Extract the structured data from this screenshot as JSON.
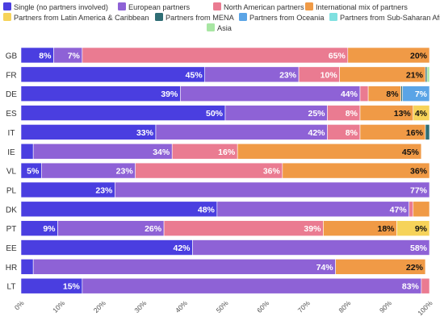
{
  "chart_data": {
    "type": "bar",
    "orientation": "horizontal",
    "stacked": true,
    "xlim": [
      0,
      100
    ],
    "x_ticks": [
      "0%",
      "10%",
      "20%",
      "30%",
      "40%",
      "50%",
      "60%",
      "70%",
      "80%",
      "90%",
      "100%"
    ],
    "categories": [
      "GB",
      "FR",
      "DE",
      "ES",
      "IT",
      "IE",
      "VL",
      "PL",
      "DK",
      "PT",
      "EE",
      "HR",
      "LT"
    ],
    "legend_position": "top",
    "series": [
      {
        "name": "Single (no partners involved)",
        "color": "#4a3ee0",
        "values": [
          8,
          45,
          39,
          50,
          33,
          3,
          5,
          23,
          48,
          9,
          42,
          3,
          15
        ]
      },
      {
        "name": "European partners",
        "color": "#8e62d6",
        "values": [
          7,
          23,
          44,
          25,
          42,
          34,
          23,
          77,
          47,
          26,
          58,
          74,
          83
        ]
      },
      {
        "name": "North American partners",
        "color": "#ea7b91",
        "values": [
          65,
          10,
          2,
          8,
          8,
          16,
          36,
          0,
          1,
          39,
          0,
          0,
          2
        ]
      },
      {
        "name": "International mix of partners",
        "color": "#f09a46",
        "values": [
          20,
          21,
          8,
          13,
          16,
          45,
          36,
          0,
          4,
          18,
          0,
          22,
          0
        ]
      },
      {
        "name": "Partners from Latin America & Caribbean",
        "color": "#f6d35a",
        "values": [
          0,
          0,
          0,
          4,
          0,
          0,
          0,
          0,
          0,
          9,
          0,
          0,
          0
        ]
      },
      {
        "name": "Partners from MENA",
        "color": "#2f6e75",
        "values": [
          0,
          0.4,
          0.4,
          0,
          1.2,
          0,
          0,
          0,
          0,
          0,
          0,
          0,
          0
        ]
      },
      {
        "name": "Partners from Oceania",
        "color": "#5aa4e6",
        "values": [
          0,
          0,
          7,
          0,
          0,
          0,
          0,
          0,
          0,
          0,
          0,
          0,
          0
        ]
      },
      {
        "name": "Partners from Sub-Saharan Africa",
        "color": "#7fe0e0",
        "values": [
          0,
          0,
          0,
          0,
          0,
          0,
          0,
          0,
          0,
          0,
          0,
          0,
          0
        ]
      },
      {
        "name": "Asia",
        "color": "#a8e6a3",
        "values": [
          0,
          1,
          0,
          0,
          0,
          0,
          0,
          0,
          0,
          0,
          0,
          0,
          0
        ]
      }
    ],
    "data_labels": [
      [
        "8%",
        "7%",
        "65%",
        "20%",
        "",
        "",
        "",
        "",
        ""
      ],
      [
        "45%",
        "23%",
        "10%",
        "21%",
        "",
        "",
        "",
        "",
        ""
      ],
      [
        "39%",
        "44%",
        "",
        "8%",
        "",
        "",
        "7%",
        "",
        ""
      ],
      [
        "50%",
        "25%",
        "8%",
        "13%",
        "4%",
        "",
        "",
        "",
        ""
      ],
      [
        "33%",
        "42%",
        "8%",
        "16%",
        "",
        "",
        "",
        "",
        ""
      ],
      [
        "",
        "34%",
        "16%",
        "45%",
        "",
        "",
        "",
        "",
        ""
      ],
      [
        "5%",
        "23%",
        "36%",
        "36%",
        "",
        "",
        "",
        "",
        ""
      ],
      [
        "23%",
        "77%",
        "",
        "",
        "",
        "",
        "",
        "",
        ""
      ],
      [
        "48%",
        "47%",
        "",
        "",
        "",
        "",
        "",
        "",
        ""
      ],
      [
        "9%",
        "26%",
        "39%",
        "18%",
        "9%",
        "",
        "",
        "",
        ""
      ],
      [
        "42%",
        "58%",
        "",
        "",
        "",
        "",
        "",
        "",
        ""
      ],
      [
        "",
        "74%",
        "",
        "22%",
        "",
        "",
        "",
        "",
        ""
      ],
      [
        "15%",
        "83%",
        "",
        "",
        "",
        "",
        "",
        "",
        ""
      ]
    ],
    "label_colors": {
      "Single (no partners involved)": "#ffffff",
      "European partners": "#ffffff",
      "North American partners": "#ffffff",
      "International mix of partners": "#111111",
      "Partners from Latin America & Caribbean": "#111111",
      "Partners from Oceania": "#ffffff"
    }
  }
}
